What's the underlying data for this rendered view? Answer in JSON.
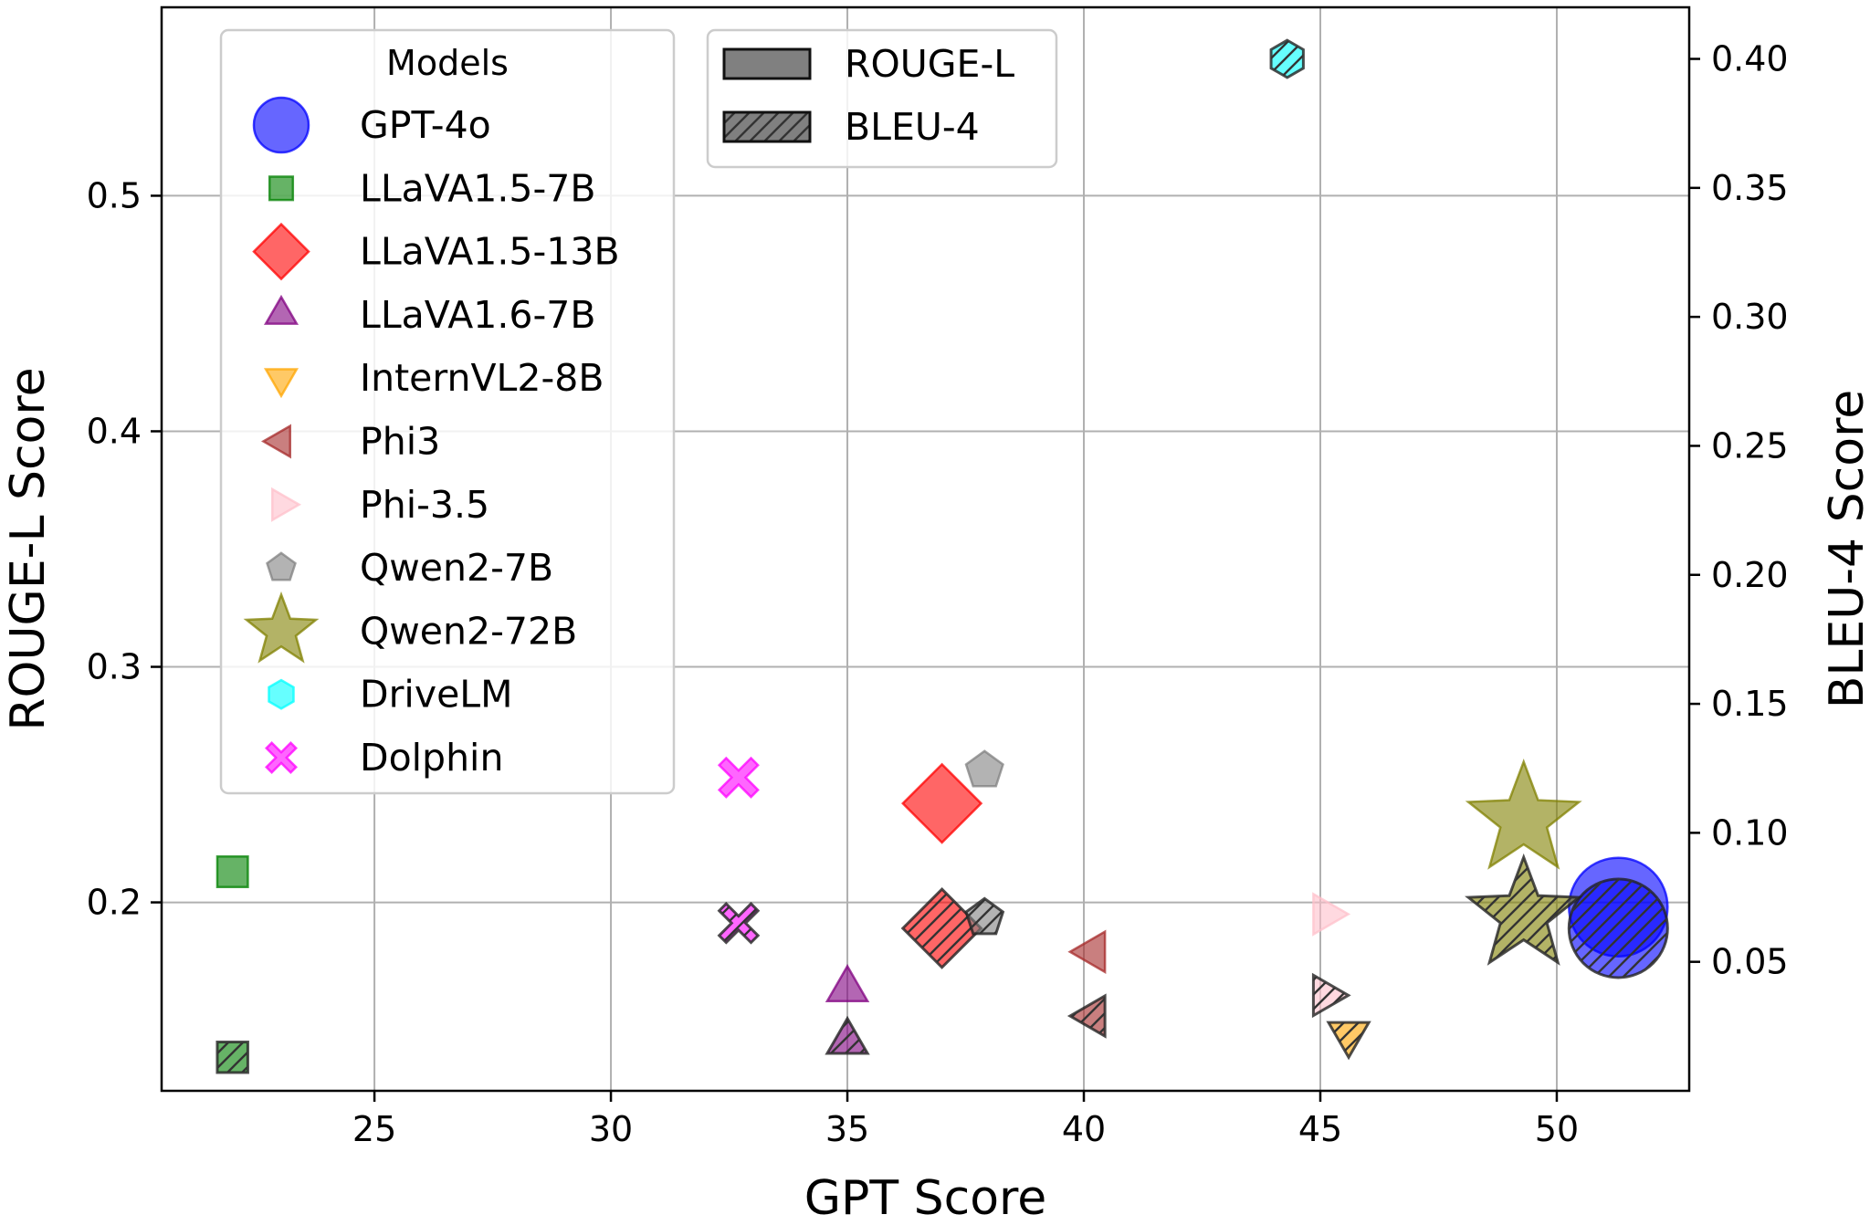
{
  "chart_data": {
    "type": "scatter",
    "xlabel": "GPT Score",
    "ylabel_left": "ROUGE-L Score",
    "ylabel_right": "BLEU-4 Score",
    "xlim": [
      20.5,
      52.8
    ],
    "ylim_left": [
      0.12,
      0.58
    ],
    "ylim_right": [
      0.0,
      0.42
    ],
    "x_ticks": [
      25,
      30,
      35,
      40,
      45,
      50
    ],
    "y_left_ticks": [
      0.2,
      0.3,
      0.4,
      0.5
    ],
    "y_right_ticks": [
      0.05,
      0.1,
      0.15,
      0.2,
      0.25,
      0.3,
      0.35,
      0.4
    ],
    "grid": true,
    "legend_models": {
      "title": "Models",
      "placement": "upper-left"
    },
    "legend_metrics": {
      "placement": "upper-center",
      "items": [
        {
          "label": "ROUGE-L",
          "hatch": false
        },
        {
          "label": "BLEU-4",
          "hatch": true
        }
      ]
    },
    "series": [
      {
        "name": "GPT-4o",
        "marker": "circle",
        "color": "#0000ff",
        "gpt": 51.3,
        "rouge_l": 0.198,
        "bleu_4": 0.063,
        "size": "large"
      },
      {
        "name": "LLaVA1.5-7B",
        "marker": "square",
        "color": "#008000",
        "gpt": 22.0,
        "rouge_l": 0.213,
        "bleu_4": 0.013,
        "size": "small"
      },
      {
        "name": "LLaVA1.5-13B",
        "marker": "diamond",
        "color": "#ff0000",
        "gpt": 37.0,
        "rouge_l": 0.242,
        "bleu_4": 0.063,
        "size": "medium"
      },
      {
        "name": "LLaVA1.6-7B",
        "marker": "triangle-up",
        "color": "#800080",
        "gpt": 35.0,
        "rouge_l": 0.163,
        "bleu_4": 0.019,
        "size": "small"
      },
      {
        "name": "InternVL2-8B",
        "marker": "triangle-down",
        "color": "#ffa500",
        "gpt": 45.6,
        "rouge_l": null,
        "bleu_4": 0.022,
        "size": "small"
      },
      {
        "name": "Phi3",
        "marker": "triangle-left",
        "color": "#a52a2a",
        "gpt": 40.2,
        "rouge_l": 0.179,
        "bleu_4": 0.029,
        "size": "small"
      },
      {
        "name": "Phi-3.5",
        "marker": "triangle-right",
        "color": "#ffc0cb",
        "gpt": 45.1,
        "rouge_l": 0.195,
        "bleu_4": 0.037,
        "size": "small"
      },
      {
        "name": "Qwen2-7B",
        "marker": "pentagon",
        "color": "#808080",
        "gpt": 37.9,
        "rouge_l": 0.256,
        "bleu_4": 0.067,
        "size": "small"
      },
      {
        "name": "Qwen2-72B",
        "marker": "star",
        "color": "#808000",
        "gpt": 49.3,
        "rouge_l": 0.235,
        "bleu_4": 0.068,
        "size": "large"
      },
      {
        "name": "DriveLM",
        "marker": "hexagon",
        "color": "#00ffff",
        "gpt": 44.3,
        "rouge_l": null,
        "bleu_4": 0.4,
        "size": "small"
      },
      {
        "name": "Dolphin",
        "marker": "x",
        "color": "#ff00ff",
        "gpt": 32.7,
        "rouge_l": 0.253,
        "bleu_4": 0.065,
        "size": "small"
      }
    ]
  }
}
